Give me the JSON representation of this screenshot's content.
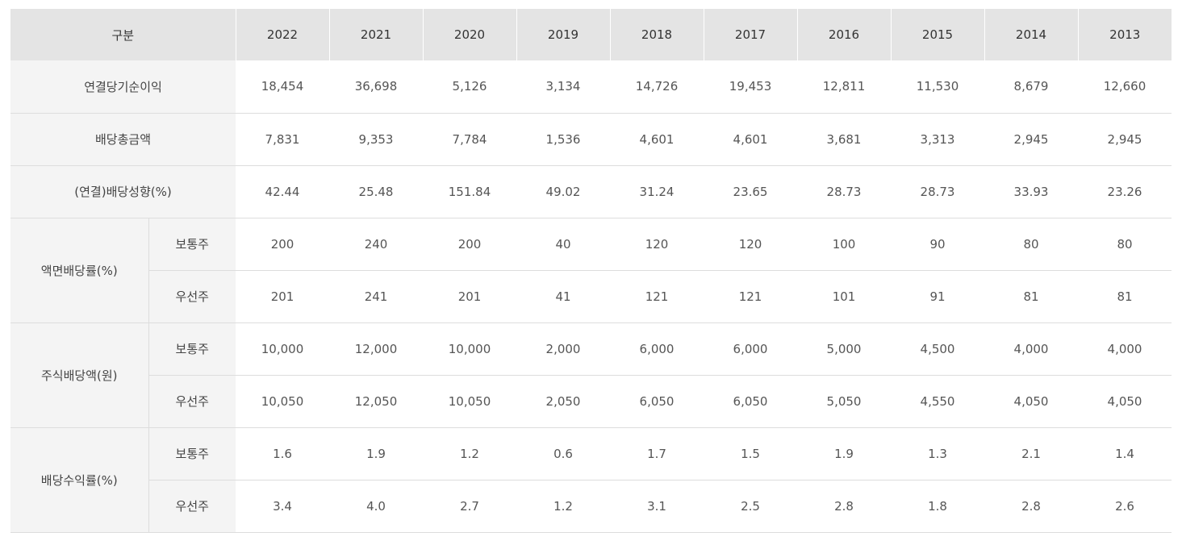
{
  "table": {
    "header": [
      "구분",
      "2022",
      "2021",
      "2020",
      "2019",
      "2018",
      "2017",
      "2016",
      "2015",
      "2014",
      "2013"
    ],
    "rows": [
      {
        "label": "연결당기순이익",
        "values": [
          "18,454",
          "36,698",
          "5,126",
          "3,134",
          "14,726",
          "19,453",
          "12,811",
          "11,530",
          "8,679",
          "12,660"
        ]
      },
      {
        "label": "배당총금액",
        "values": [
          "7,831",
          "9,353",
          "7,784",
          "1,536",
          "4,601",
          "4,601",
          "3,681",
          "3,313",
          "2,945",
          "2,945"
        ]
      },
      {
        "label": "(연결)배당성향(%)",
        "values": [
          "42.44",
          "25.48",
          "151.84",
          "49.02",
          "31.24",
          "23.65",
          "28.73",
          "28.73",
          "33.93",
          "23.26"
        ]
      },
      {
        "label": "액면배당률(%)",
        "subrows": [
          {
            "label": "보통주",
            "values": [
              "200",
              "240",
              "200",
              "40",
              "120",
              "120",
              "100",
              "90",
              "80",
              "80"
            ]
          },
          {
            "label": "우선주",
            "values": [
              "201",
              "241",
              "201",
              "41",
              "121",
              "121",
              "101",
              "91",
              "81",
              "81"
            ]
          }
        ]
      },
      {
        "label": "주식배당액(원)",
        "subrows": [
          {
            "label": "보통주",
            "values": [
              "10,000",
              "12,000",
              "10,000",
              "2,000",
              "6,000",
              "6,000",
              "5,000",
              "4,500",
              "4,000",
              "4,000"
            ]
          },
          {
            "label": "우선주",
            "values": [
              "10,050",
              "12,050",
              "10,050",
              "2,050",
              "6,050",
              "6,050",
              "5,050",
              "4,550",
              "4,050",
              "4,050"
            ]
          }
        ]
      },
      {
        "label": "배당수익률(%)",
        "subrows": [
          {
            "label": "보통주",
            "values": [
              "1.6",
              "1.9",
              "1.2",
              "0.6",
              "1.7",
              "1.5",
              "1.9",
              "1.3",
              "2.1",
              "1.4"
            ]
          },
          {
            "label": "우선주",
            "values": [
              "3.4",
              "4.0",
              "2.7",
              "1.2",
              "3.1",
              "2.5",
              "2.8",
              "1.8",
              "2.8",
              "2.6"
            ]
          }
        ]
      }
    ]
  }
}
